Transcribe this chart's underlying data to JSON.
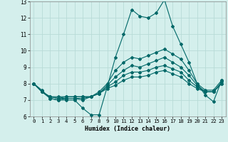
{
  "xlabel": "Humidex (Indice chaleur)",
  "bg_color": "#d4efec",
  "grid_color": "#b8dbd7",
  "line_color": "#006868",
  "x_values": [
    0,
    1,
    2,
    3,
    4,
    5,
    6,
    7,
    8,
    9,
    10,
    11,
    12,
    13,
    14,
    15,
    16,
    17,
    18,
    19,
    20,
    21,
    22,
    23
  ],
  "series": [
    [
      8.0,
      7.6,
      7.1,
      7.0,
      7.0,
      7.0,
      6.5,
      6.1,
      6.1,
      7.8,
      9.6,
      11.0,
      12.5,
      12.1,
      12.0,
      12.3,
      13.1,
      11.5,
      10.4,
      9.3,
      8.0,
      7.3,
      6.9,
      8.2
    ],
    [
      8.0,
      7.5,
      7.1,
      7.0,
      7.1,
      7.1,
      7.0,
      7.2,
      7.5,
      8.0,
      8.8,
      9.3,
      9.6,
      9.5,
      9.7,
      9.9,
      10.1,
      9.8,
      9.5,
      8.8,
      8.0,
      7.6,
      7.6,
      8.2
    ],
    [
      8.0,
      7.5,
      7.2,
      7.1,
      7.1,
      7.1,
      7.1,
      7.2,
      7.4,
      7.9,
      8.4,
      8.8,
      9.1,
      9.0,
      9.2,
      9.4,
      9.6,
      9.3,
      9.0,
      8.5,
      7.9,
      7.5,
      7.5,
      8.1
    ],
    [
      8.0,
      7.5,
      7.2,
      7.1,
      7.2,
      7.2,
      7.2,
      7.2,
      7.4,
      7.8,
      8.1,
      8.5,
      8.7,
      8.7,
      8.8,
      9.0,
      9.1,
      8.9,
      8.7,
      8.2,
      7.8,
      7.5,
      7.5,
      8.0
    ],
    [
      8.0,
      7.5,
      7.2,
      7.2,
      7.2,
      7.2,
      7.2,
      7.2,
      7.4,
      7.7,
      7.9,
      8.2,
      8.4,
      8.4,
      8.5,
      8.7,
      8.8,
      8.6,
      8.4,
      8.0,
      7.7,
      7.5,
      7.5,
      8.0
    ]
  ],
  "ylim": [
    6,
    13
  ],
  "xlim": [
    -0.5,
    23.5
  ],
  "yticks": [
    6,
    7,
    8,
    9,
    10,
    11,
    12,
    13
  ],
  "xticks": [
    0,
    1,
    2,
    3,
    4,
    5,
    6,
    7,
    8,
    9,
    10,
    11,
    12,
    13,
    14,
    15,
    16,
    17,
    18,
    19,
    20,
    21,
    22,
    23
  ]
}
